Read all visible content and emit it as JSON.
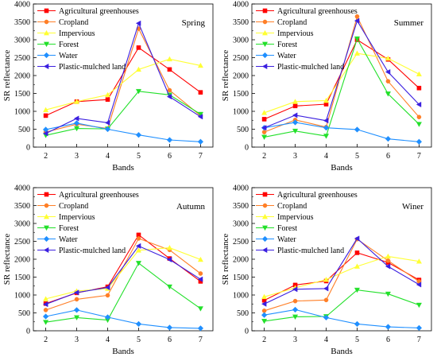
{
  "chart_data": [
    {
      "type": "line",
      "title": "Spring",
      "xlabel": "Bands",
      "ylabel": "SR reflectance",
      "x": [
        2,
        3,
        4,
        5,
        6,
        7
      ],
      "ylim": [
        0,
        4000
      ],
      "yticks": [
        0,
        500,
        1000,
        1500,
        2000,
        2500,
        3000,
        3500,
        4000
      ],
      "series": [
        {
          "name": "Agricultural greenhouses",
          "values": [
            880,
            1270,
            1330,
            2780,
            2170,
            1530
          ]
        },
        {
          "name": "Cropland",
          "values": [
            420,
            640,
            520,
            3310,
            1590,
            880
          ]
        },
        {
          "name": "Impervious",
          "values": [
            1040,
            1270,
            1460,
            2170,
            2460,
            2280
          ]
        },
        {
          "name": "Forest",
          "values": [
            330,
            520,
            510,
            1560,
            1460,
            920
          ]
        },
        {
          "name": "Water",
          "values": [
            490,
            670,
            500,
            340,
            200,
            150
          ]
        },
        {
          "name": "Plastic-mulched land",
          "values": [
            380,
            800,
            680,
            3460,
            1410,
            850
          ]
        }
      ],
      "legend": "top-left",
      "grid": false
    },
    {
      "type": "line",
      "title": "Summer",
      "xlabel": "Bands",
      "ylabel": "SR reflectance",
      "x": [
        2,
        3,
        4,
        5,
        6,
        7
      ],
      "ylim": [
        0,
        4000
      ],
      "yticks": [
        0,
        500,
        1000,
        1500,
        2000,
        2500,
        3000,
        3500,
        4000
      ],
      "series": [
        {
          "name": "Agricultural greenhouses",
          "values": [
            780,
            1150,
            1200,
            3000,
            2450,
            1650
          ]
        },
        {
          "name": "Cropland",
          "values": [
            420,
            760,
            560,
            3650,
            1840,
            840
          ]
        },
        {
          "name": "Impervious",
          "values": [
            960,
            1270,
            1300,
            2620,
            2480,
            2040
          ]
        },
        {
          "name": "Forest",
          "values": [
            280,
            450,
            310,
            3030,
            1490,
            640
          ]
        },
        {
          "name": "Water",
          "values": [
            540,
            690,
            540,
            490,
            230,
            150
          ]
        },
        {
          "name": "Plastic-mulched land",
          "values": [
            540,
            890,
            740,
            3530,
            2100,
            1190
          ]
        }
      ],
      "legend": "top-left",
      "grid": false
    },
    {
      "type": "line",
      "title": "Autumn",
      "xlabel": "Bands",
      "ylabel": "SR reflectance",
      "x": [
        2,
        3,
        4,
        5,
        6,
        7
      ],
      "ylim": [
        0,
        4000
      ],
      "yticks": [
        0,
        500,
        1000,
        1500,
        2000,
        2500,
        3000,
        3500,
        4000
      ],
      "series": [
        {
          "name": "Agricultural greenhouses",
          "values": [
            760,
            1060,
            1230,
            2680,
            2020,
            1380
          ]
        },
        {
          "name": "Cropland",
          "values": [
            580,
            880,
            990,
            2580,
            2260,
            1600
          ]
        },
        {
          "name": "Impervious",
          "values": [
            890,
            1110,
            1180,
            2250,
            2320,
            1990
          ]
        },
        {
          "name": "Forest",
          "values": [
            240,
            370,
            300,
            1890,
            1230,
            620
          ]
        },
        {
          "name": "Water",
          "values": [
            400,
            580,
            380,
            190,
            90,
            70
          ]
        },
        {
          "name": "Plastic-mulched land",
          "values": [
            740,
            1070,
            1210,
            2370,
            1990,
            1440
          ]
        }
      ],
      "legend": "top-left",
      "grid": false
    },
    {
      "type": "line",
      "title": "Winer",
      "xlabel": "Bands",
      "ylabel": "SR reflectance",
      "x": [
        2,
        3,
        4,
        5,
        6,
        7
      ],
      "ylim": [
        0,
        4000
      ],
      "yticks": [
        0,
        500,
        1000,
        1500,
        2000,
        2500,
        3000,
        3500,
        4000
      ],
      "series": [
        {
          "name": "Agricultural greenhouses",
          "values": [
            850,
            1280,
            1390,
            2180,
            1910,
            1420
          ]
        },
        {
          "name": "Cropland",
          "values": [
            560,
            830,
            860,
            2560,
            1960,
            1380
          ]
        },
        {
          "name": "Impervious",
          "values": [
            950,
            1200,
            1430,
            1800,
            2080,
            1940
          ]
        },
        {
          "name": "Forest",
          "values": [
            270,
            390,
            400,
            1140,
            1030,
            720
          ]
        },
        {
          "name": "Water",
          "values": [
            440,
            590,
            370,
            190,
            110,
            80
          ]
        },
        {
          "name": "Plastic-mulched land",
          "values": [
            750,
            1160,
            1180,
            2580,
            1800,
            1290
          ]
        }
      ],
      "legend": "top-left",
      "grid": false
    }
  ],
  "series_style": [
    {
      "color": "#ff0000",
      "marker": "square"
    },
    {
      "color": "#ff7f27",
      "marker": "circle"
    },
    {
      "color": "#ffff33",
      "marker": "triangle-up"
    },
    {
      "color": "#22e02a",
      "marker": "triangle-down"
    },
    {
      "color": "#1f8fff",
      "marker": "diamond"
    },
    {
      "color": "#3b1fe0",
      "marker": "triangle-left"
    }
  ]
}
